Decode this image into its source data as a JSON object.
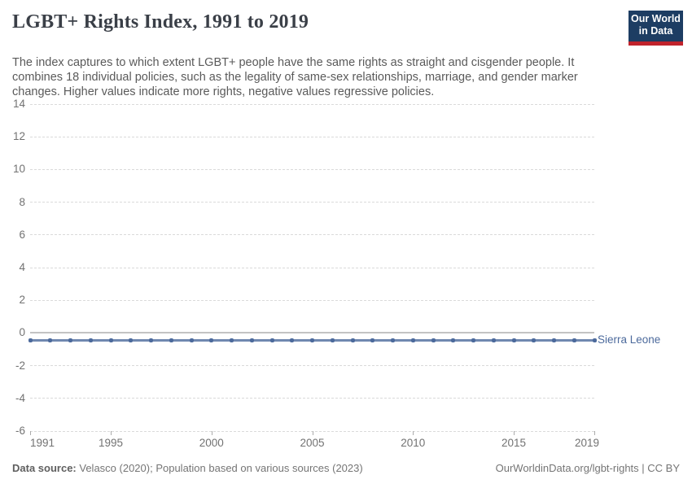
{
  "header": {
    "title": "LGBT+ Rights Index, 1991 to 2019",
    "subtitle": "The index captures to which extent LGBT+ people have the same rights as straight and cisgender people. It combines 18 individual policies, such as the legality of same-sex relationships, marriage, and gender marker changes. Higher values indicate more rights, negative values regressive policies.",
    "logo": {
      "line1": "Our World",
      "line2": "in Data"
    }
  },
  "chart_data": {
    "type": "line",
    "title": "LGBT+ Rights Index, 1991 to 2019",
    "xlabel": "",
    "ylabel": "",
    "xlim": [
      1991,
      2019
    ],
    "ylim": [
      -6,
      14
    ],
    "x_ticks": [
      1991,
      1995,
      2000,
      2005,
      2010,
      2015,
      2019
    ],
    "y_ticks": [
      14,
      12,
      10,
      8,
      6,
      4,
      2,
      0,
      -2,
      -4,
      -6
    ],
    "grid": "horizontal-dashed",
    "zero_line": true,
    "legend_position": "line-end-label",
    "series": [
      {
        "name": "Sierra Leone",
        "color": "#4C6A9C",
        "x": [
          1991,
          1992,
          1993,
          1994,
          1995,
          1996,
          1997,
          1998,
          1999,
          2000,
          2001,
          2002,
          2003,
          2004,
          2005,
          2006,
          2007,
          2008,
          2009,
          2010,
          2011,
          2012,
          2013,
          2014,
          2015,
          2016,
          2017,
          2018,
          2019
        ],
        "values": [
          -0.45,
          -0.45,
          -0.45,
          -0.45,
          -0.45,
          -0.45,
          -0.45,
          -0.45,
          -0.45,
          -0.45,
          -0.45,
          -0.45,
          -0.45,
          -0.45,
          -0.45,
          -0.45,
          -0.45,
          -0.45,
          -0.45,
          -0.45,
          -0.45,
          -0.45,
          -0.45,
          -0.45,
          -0.45,
          -0.45,
          -0.45,
          -0.45,
          -0.45
        ]
      }
    ]
  },
  "footer": {
    "source_label": "Data source:",
    "source_text": "Velasco (2020); Population based on various sources (2023)",
    "credit": "OurWorldinData.org/lgbt-rights | CC BY"
  },
  "colors": {
    "accent_blue": "#4C6A9C",
    "line_blue": "#7088b0",
    "logo_bg": "#1d3d63",
    "logo_bar": "#c0232c",
    "grid": "#dadada",
    "zero_line": "#c3c3c3",
    "axis_text": "#727272",
    "title_text": "#3a3f47",
    "subtitle_text": "#5a5a5a"
  }
}
